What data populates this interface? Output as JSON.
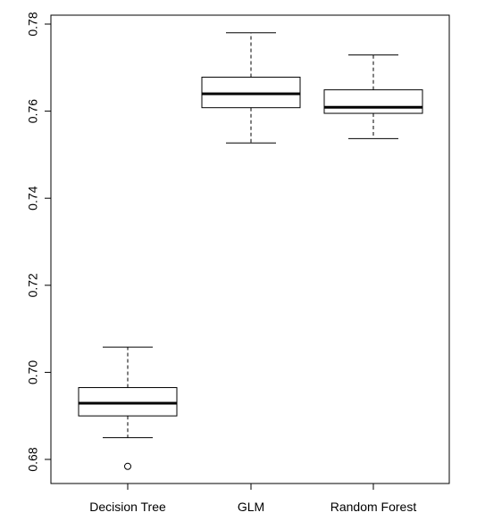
{
  "chart_data": {
    "type": "boxplot",
    "title": "",
    "xlabel": "",
    "ylabel": "",
    "ylim": [
      0.675,
      0.7805
    ],
    "yticks": [
      0.68,
      0.7,
      0.72,
      0.74,
      0.76,
      0.78
    ],
    "ytick_labels": [
      "0.68",
      "0.70",
      "0.72",
      "0.74",
      "0.76",
      "0.78"
    ],
    "grid": false,
    "categories": [
      "Decision Tree",
      "GLM",
      "Random Forest"
    ],
    "boxes": [
      {
        "category": "Decision Tree",
        "whisker_low": 0.685,
        "q1": 0.69,
        "median": 0.6929,
        "q3": 0.6965,
        "whisker_high": 0.7058,
        "outliers": [
          0.6784
        ]
      },
      {
        "category": "GLM",
        "whisker_low": 0.7527,
        "q1": 0.7608,
        "median": 0.764,
        "q3": 0.7678,
        "whisker_high": 0.778,
        "outliers": []
      },
      {
        "category": "Random Forest",
        "whisker_low": 0.7537,
        "q1": 0.7595,
        "median": 0.7609,
        "q3": 0.7649,
        "whisker_high": 0.7729,
        "outliers": []
      }
    ]
  }
}
